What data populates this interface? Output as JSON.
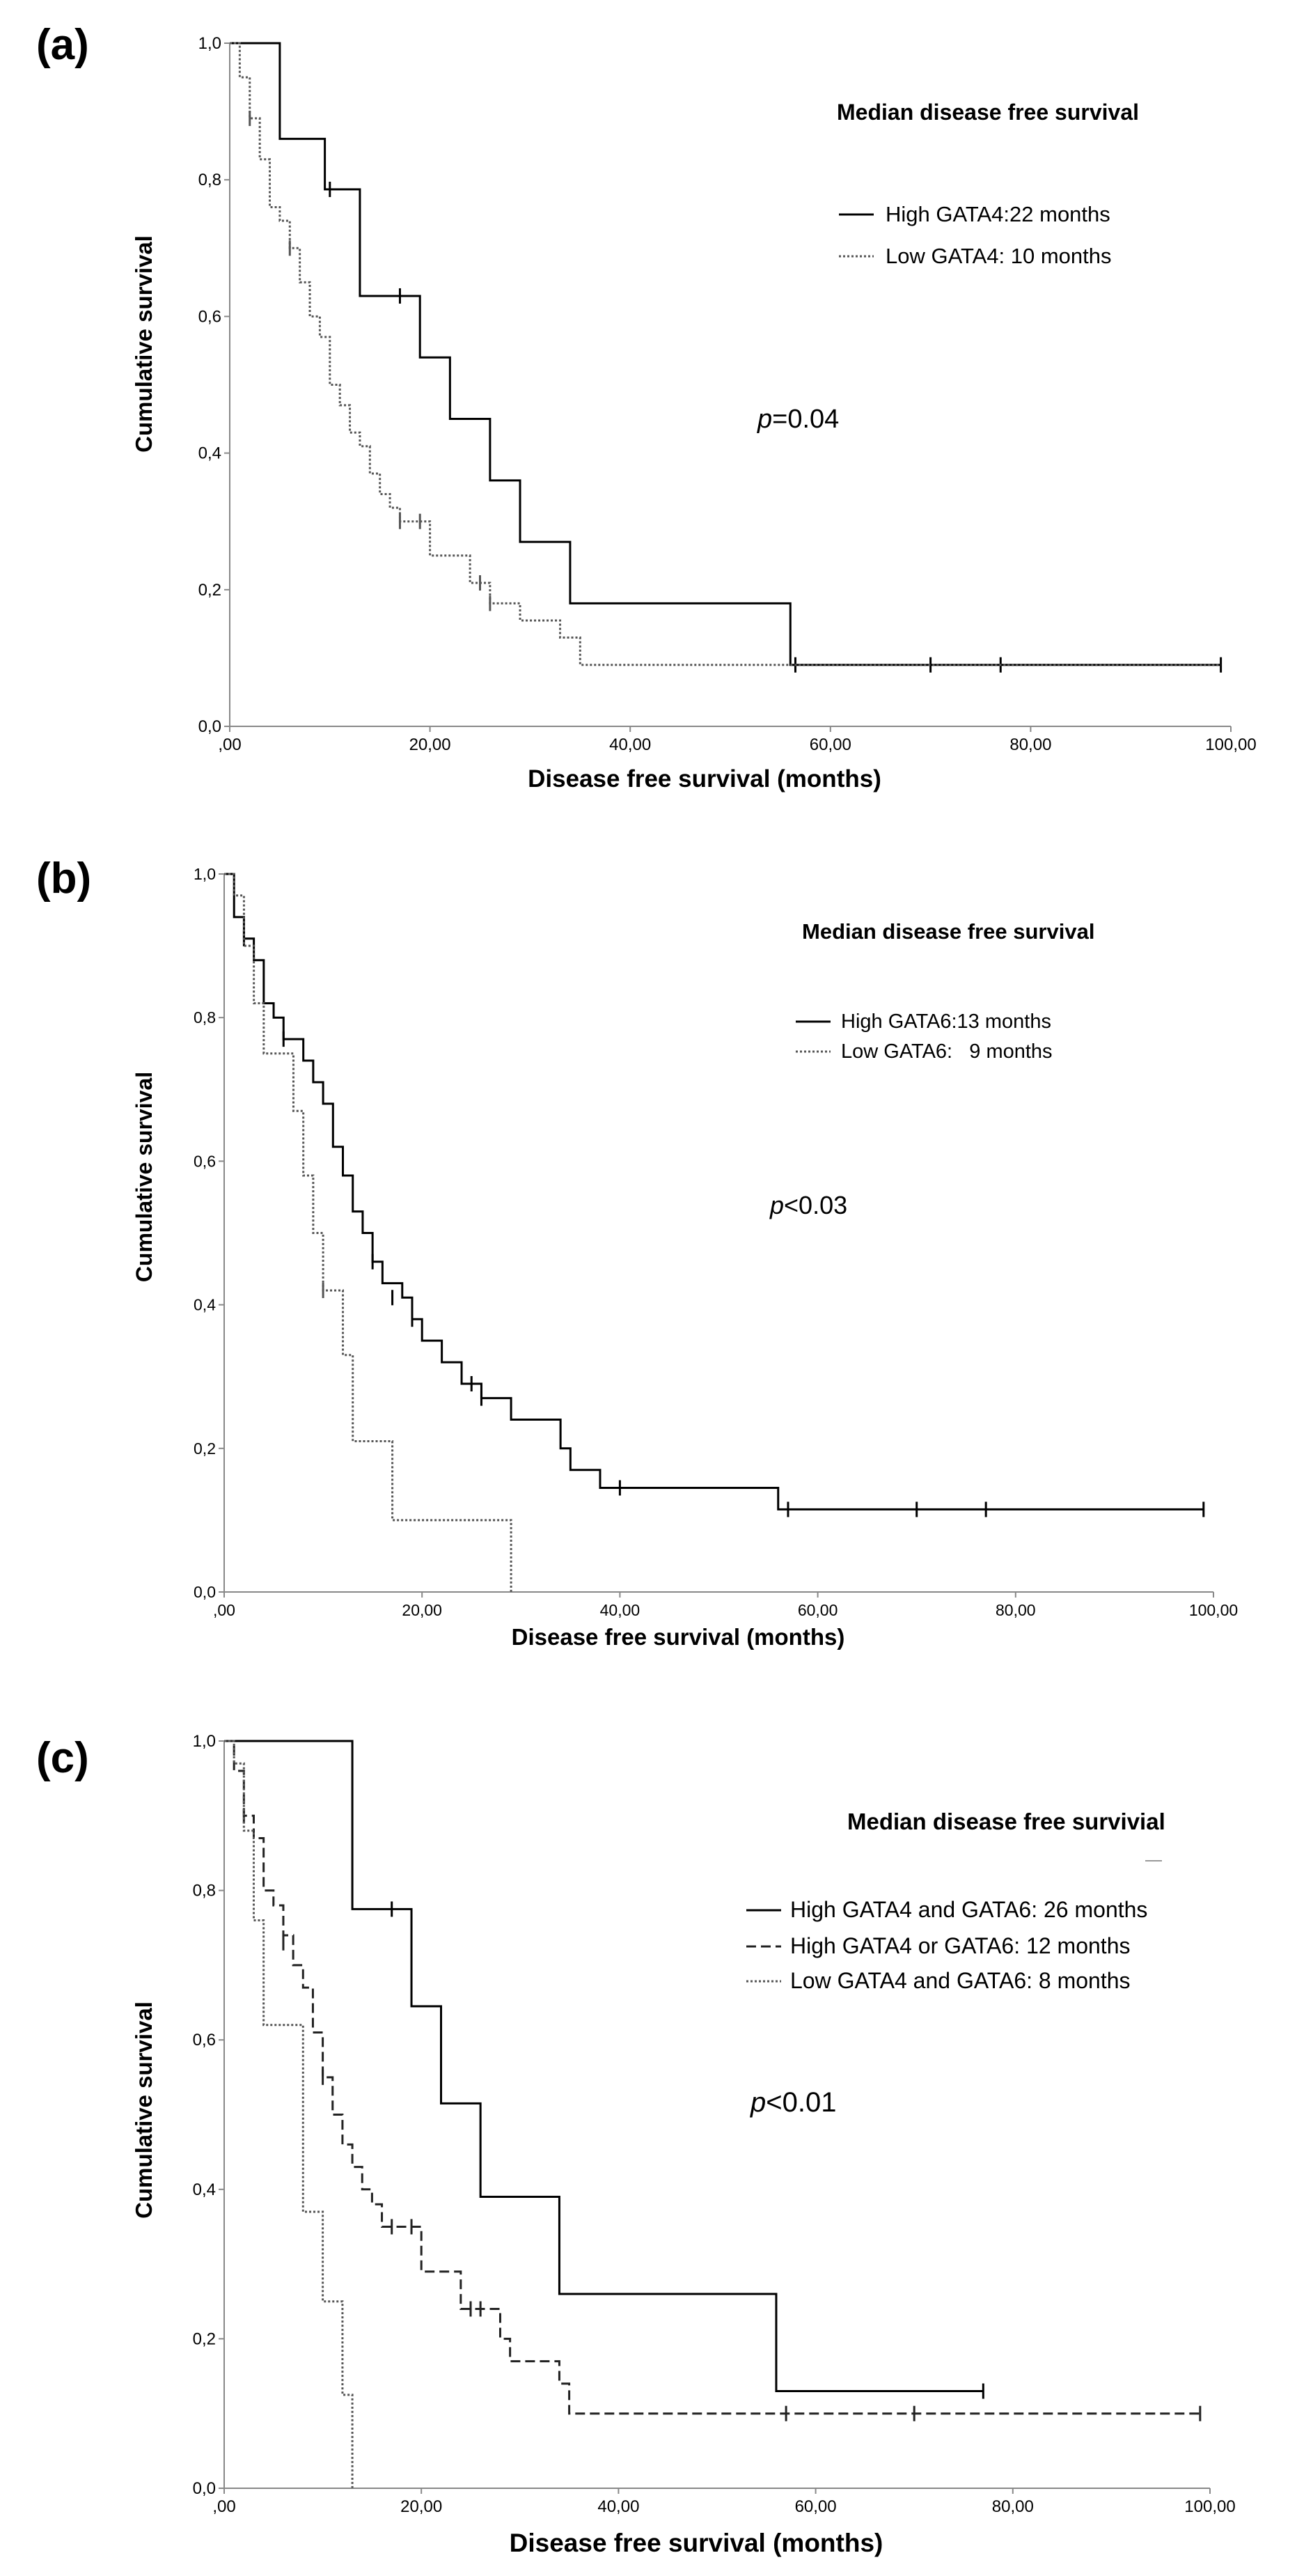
{
  "chart_data": [
    {
      "type": "line",
      "panel_label": "(a)",
      "title": "Median disease free survival",
      "xlabel": "Disease free survival (months)",
      "ylabel": "Cumulative survival",
      "xlim": [
        0,
        100
      ],
      "ylim": [
        0,
        1
      ],
      "x_ticks": [
        ",00",
        "20,00",
        "40,00",
        "60,00",
        "80,00",
        "100,00"
      ],
      "y_ticks": [
        "0,0",
        "0,2",
        "0,4",
        "0,6",
        "0,8",
        "1,0"
      ],
      "p_value": {
        "prefix": "p",
        "text": "=0.04"
      },
      "legend": [
        "High GATA4:22 months",
        "Low GATA4: 10 months"
      ],
      "series": [
        {
          "name": "High GATA4:22 months",
          "style": "solid",
          "steps": [
            [
              0,
              1.0
            ],
            [
              5,
              0.86
            ],
            [
              9.5,
              0.786
            ],
            [
              13,
              0.63
            ],
            [
              19,
              0.54
            ],
            [
              22,
              0.45
            ],
            [
              26,
              0.36
            ],
            [
              29,
              0.27
            ],
            [
              34,
              0.18
            ],
            [
              56,
              0.09
            ]
          ],
          "end_x": 99,
          "censored": [
            [
              10,
              0.786
            ],
            [
              17,
              0.63
            ],
            [
              56.5,
              0.09
            ],
            [
              70,
              0.09
            ],
            [
              77,
              0.09
            ],
            [
              99,
              0.09
            ]
          ]
        },
        {
          "name": "Low GATA4: 10 months",
          "style": "dotted",
          "steps": [
            [
              0,
              1.0
            ],
            [
              1,
              0.95
            ],
            [
              2,
              0.89
            ],
            [
              3,
              0.83
            ],
            [
              4,
              0.76
            ],
            [
              5,
              0.74
            ],
            [
              6,
              0.7
            ],
            [
              7,
              0.65
            ],
            [
              8,
              0.6
            ],
            [
              9,
              0.57
            ],
            [
              10,
              0.5
            ],
            [
              11,
              0.47
            ],
            [
              12,
              0.43
            ],
            [
              13,
              0.41
            ],
            [
              14,
              0.37
            ],
            [
              15,
              0.34
            ],
            [
              16,
              0.32
            ],
            [
              17,
              0.3
            ],
            [
              20,
              0.25
            ],
            [
              24,
              0.21
            ],
            [
              26,
              0.18
            ],
            [
              29,
              0.155
            ],
            [
              33,
              0.13
            ],
            [
              35,
              0.09
            ]
          ],
          "end_x": 99,
          "censored": [
            [
              2,
              0.89
            ],
            [
              6,
              0.7
            ],
            [
              17,
              0.3
            ],
            [
              19,
              0.3
            ],
            [
              25,
              0.21
            ],
            [
              26,
              0.18
            ]
          ]
        }
      ]
    },
    {
      "type": "line",
      "panel_label": "(b)",
      "title": "Median disease free survival",
      "xlabel": "Disease free survival (months)",
      "ylabel": "Cumulative survival",
      "xlim": [
        0,
        100
      ],
      "ylim": [
        0,
        1
      ],
      "x_ticks": [
        ",00",
        "20,00",
        "40,00",
        "60,00",
        "80,00",
        "100,00"
      ],
      "y_ticks": [
        "0,0",
        "0,2",
        "0,4",
        "0,6",
        "0,8",
        "1,0"
      ],
      "p_value": {
        "prefix": "p",
        "text": "<0.03"
      },
      "legend": [
        "High GATA6:13 months",
        "Low GATA6:   9 months"
      ],
      "series": [
        {
          "name": "High GATA6:13 months",
          "style": "solid",
          "steps": [
            [
              0,
              1.0
            ],
            [
              1,
              0.94
            ],
            [
              2,
              0.91
            ],
            [
              3,
              0.88
            ],
            [
              4,
              0.82
            ],
            [
              5,
              0.8
            ],
            [
              6,
              0.77
            ],
            [
              8,
              0.74
            ],
            [
              9,
              0.71
            ],
            [
              10,
              0.68
            ],
            [
              11,
              0.62
            ],
            [
              12,
              0.58
            ],
            [
              13,
              0.53
            ],
            [
              14,
              0.5
            ],
            [
              15,
              0.46
            ],
            [
              16,
              0.43
            ],
            [
              18,
              0.41
            ],
            [
              19,
              0.38
            ],
            [
              20,
              0.35
            ],
            [
              22,
              0.32
            ],
            [
              24,
              0.29
            ],
            [
              26,
              0.27
            ],
            [
              29,
              0.24
            ],
            [
              34,
              0.2
            ],
            [
              35,
              0.17
            ],
            [
              38,
              0.145
            ],
            [
              56,
              0.115
            ]
          ],
          "end_x": 99,
          "censored": [
            [
              2,
              0.91
            ],
            [
              6,
              0.77
            ],
            [
              15,
              0.46
            ],
            [
              17,
              0.41
            ],
            [
              19,
              0.38
            ],
            [
              25,
              0.29
            ],
            [
              26,
              0.27
            ],
            [
              40,
              0.145
            ],
            [
              57,
              0.115
            ],
            [
              70,
              0.115
            ],
            [
              77,
              0.115
            ],
            [
              99,
              0.115
            ]
          ]
        },
        {
          "name": "Low GATA6:   9 months",
          "style": "dotted",
          "steps": [
            [
              0,
              1.0
            ],
            [
              1,
              0.97
            ],
            [
              2,
              0.9
            ],
            [
              3,
              0.82
            ],
            [
              4,
              0.75
            ],
            [
              7,
              0.67
            ],
            [
              8,
              0.58
            ],
            [
              9,
              0.5
            ],
            [
              10,
              0.42
            ],
            [
              12,
              0.33
            ],
            [
              13,
              0.21
            ],
            [
              17,
              0.1
            ],
            [
              29,
              0.0
            ]
          ],
          "end_x": 29,
          "censored": [
            [
              10,
              0.42
            ]
          ]
        }
      ]
    },
    {
      "type": "line",
      "panel_label": "(c)",
      "title": "Median disease free survivial",
      "xlabel": "Disease free survival (months)",
      "ylabel": "Cumulative survival",
      "xlim": [
        0,
        100
      ],
      "ylim": [
        0,
        1
      ],
      "x_ticks": [
        ",00",
        "20,00",
        "40,00",
        "60,00",
        "80,00",
        "100,00"
      ],
      "y_ticks": [
        "0,0",
        "0,2",
        "0,4",
        "0,6",
        "0,8",
        "1,0"
      ],
      "p_value": {
        "prefix": "p",
        "text": "<0.01"
      },
      "legend": [
        "High GATA4 and GATA6: 26 months",
        "High GATA4 or GATA6: 12 months",
        "Low GATA4 and GATA6: 8 months"
      ],
      "series": [
        {
          "name": "High GATA4 and GATA6: 26 months",
          "style": "solid",
          "steps": [
            [
              0,
              1.0
            ],
            [
              13,
              0.775
            ],
            [
              19,
              0.645
            ],
            [
              22,
              0.515
            ],
            [
              26,
              0.39
            ],
            [
              34,
              0.26
            ],
            [
              56,
              0.13
            ]
          ],
          "end_x": 77,
          "censored": [
            [
              17,
              0.775
            ],
            [
              77,
              0.13
            ]
          ]
        },
        {
          "name": "High GATA4 or GATA6: 12 months",
          "style": "dashed",
          "steps": [
            [
              0,
              1.0
            ],
            [
              1,
              0.96
            ],
            [
              2,
              0.9
            ],
            [
              3,
              0.87
            ],
            [
              4,
              0.8
            ],
            [
              5,
              0.78
            ],
            [
              6,
              0.74
            ],
            [
              7,
              0.7
            ],
            [
              8,
              0.67
            ],
            [
              9,
              0.61
            ],
            [
              10,
              0.55
            ],
            [
              11,
              0.5
            ],
            [
              12,
              0.46
            ],
            [
              13,
              0.43
            ],
            [
              14,
              0.4
            ],
            [
              15,
              0.38
            ],
            [
              16,
              0.35
            ],
            [
              20,
              0.29
            ],
            [
              24,
              0.24
            ],
            [
              28,
              0.2
            ],
            [
              29,
              0.17
            ],
            [
              34,
              0.14
            ],
            [
              35,
              0.1
            ]
          ],
          "end_x": 99,
          "censored": [
            [
              2,
              0.9
            ],
            [
              6,
              0.73
            ],
            [
              10,
              0.55
            ],
            [
              17,
              0.35
            ],
            [
              19,
              0.35
            ],
            [
              25,
              0.24
            ],
            [
              26,
              0.24
            ],
            [
              57,
              0.1
            ],
            [
              70,
              0.1
            ],
            [
              99,
              0.1
            ]
          ]
        },
        {
          "name": "Low GATA4 and GATA6: 8 months",
          "style": "dotted",
          "steps": [
            [
              0,
              1.0
            ],
            [
              1,
              0.97
            ],
            [
              2,
              0.88
            ],
            [
              3,
              0.76
            ],
            [
              4,
              0.62
            ],
            [
              8,
              0.37
            ],
            [
              10,
              0.25
            ],
            [
              12,
              0.125
            ],
            [
              13,
              0.0
            ]
          ],
          "end_x": 13,
          "censored": []
        }
      ]
    }
  ]
}
